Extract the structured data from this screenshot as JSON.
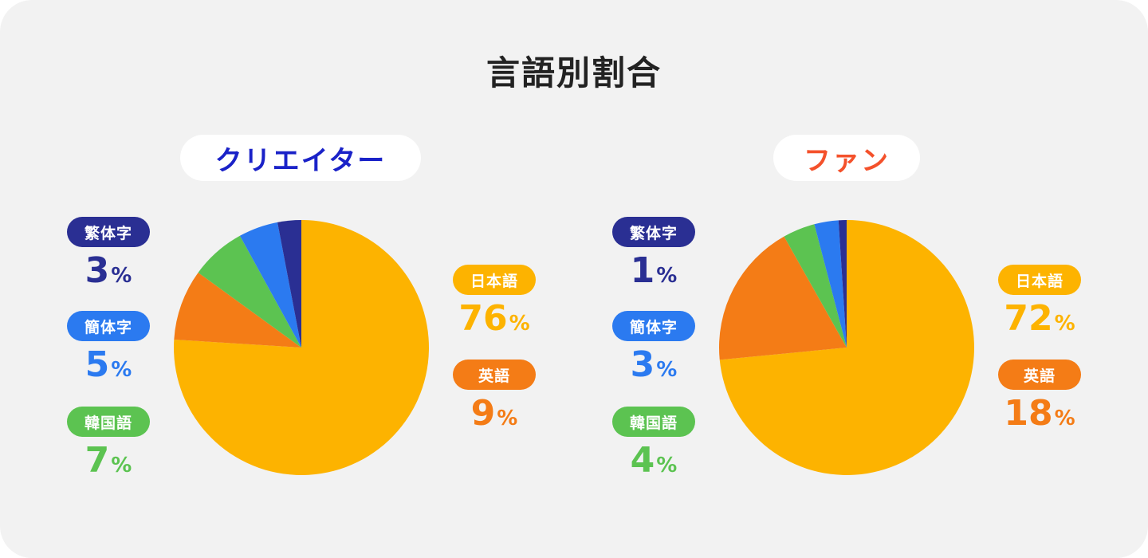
{
  "title": "言語別割合",
  "colors": {
    "japanese": "#fdb300",
    "english": "#f47c16",
    "korean": "#5cc351",
    "simplified": "#2b7af0",
    "traditional": "#2a2f93",
    "creator_title": "#1a22c8",
    "fan_title": "#f4512b"
  },
  "chart_data": [
    {
      "type": "pie",
      "title": "クリエイター",
      "slices": [
        {
          "label": "日本語",
          "value": 76,
          "unit": "%",
          "color": "#fdb300"
        },
        {
          "label": "英語",
          "value": 9,
          "unit": "%",
          "color": "#f47c16"
        },
        {
          "label": "韓国語",
          "value": 7,
          "unit": "%",
          "color": "#5cc351"
        },
        {
          "label": "簡体字",
          "value": 5,
          "unit": "%",
          "color": "#2b7af0"
        },
        {
          "label": "繁体字",
          "value": 3,
          "unit": "%",
          "color": "#2a2f93"
        }
      ]
    },
    {
      "type": "pie",
      "title": "ファン",
      "slices": [
        {
          "label": "日本語",
          "value": 72,
          "unit": "%",
          "color": "#fdb300"
        },
        {
          "label": "英語",
          "value": 18,
          "unit": "%",
          "color": "#f47c16"
        },
        {
          "label": "韓国語",
          "value": 4,
          "unit": "%",
          "color": "#5cc351"
        },
        {
          "label": "簡体字",
          "value": 3,
          "unit": "%",
          "color": "#2b7af0"
        },
        {
          "label": "繁体字",
          "value": 1,
          "unit": "%",
          "color": "#2a2f93"
        }
      ]
    }
  ]
}
